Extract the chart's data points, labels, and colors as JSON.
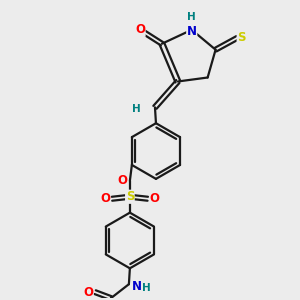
{
  "background_color": "#ececec",
  "bond_color": "#1a1a1a",
  "atom_colors": {
    "O": "#ff0000",
    "N": "#0000cc",
    "S": "#cccc00",
    "H": "#008080",
    "C": "#1a1a1a"
  },
  "figsize": [
    3.0,
    3.0
  ],
  "dpi": 100
}
